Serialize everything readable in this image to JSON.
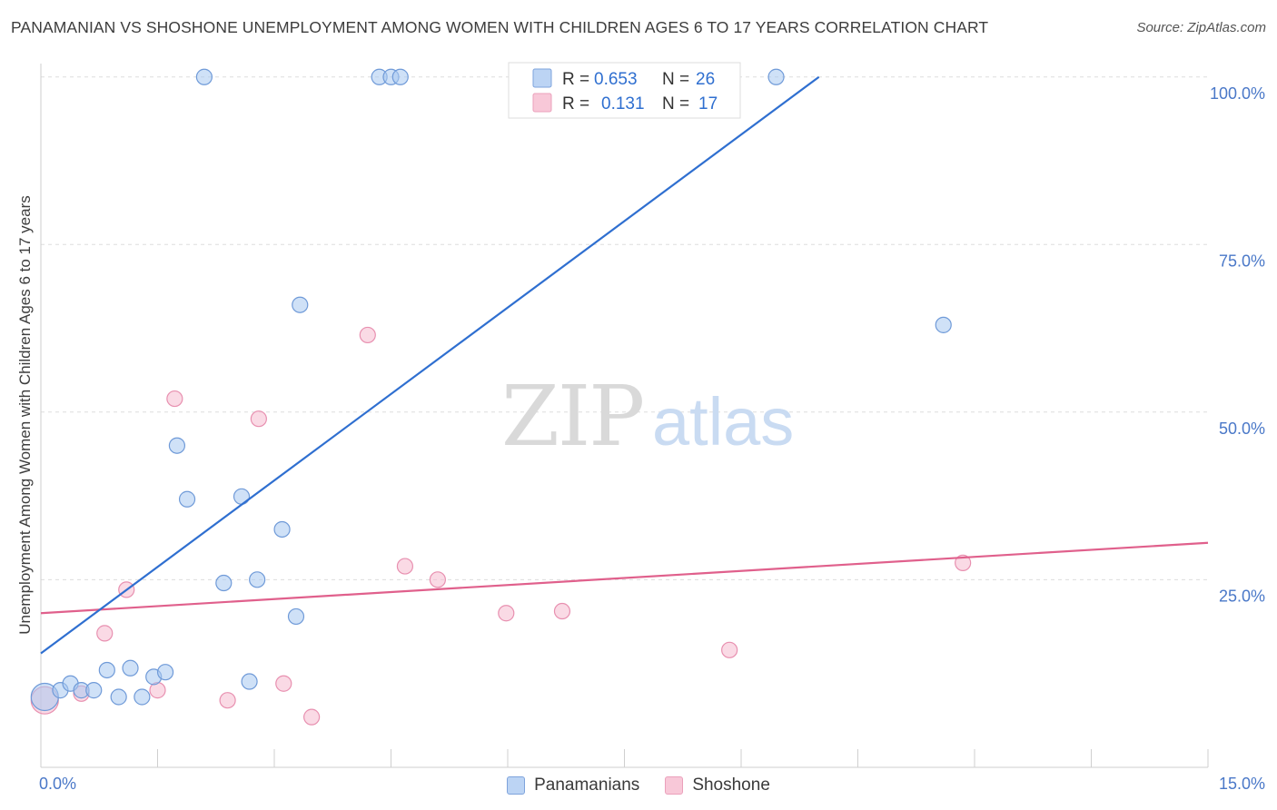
{
  "title": "PANAMANIAN VS SHOSHONE UNEMPLOYMENT AMONG WOMEN WITH CHILDREN AGES 6 TO 17 YEARS CORRELATION CHART",
  "source": "Source: ZipAtlas.com",
  "watermark": {
    "zip": "ZIP",
    "atlas": "atlas"
  },
  "colors": {
    "blue_fill": "#a8c8f0",
    "blue_stroke": "#6f9ad8",
    "blue_line": "#2f6fd0",
    "pink_fill": "#f5bcd0",
    "pink_stroke": "#e890b0",
    "pink_line": "#e0608c",
    "tick_text": "#4a78c8",
    "grid": "#dddddd"
  },
  "legend": {
    "rows": [
      {
        "r_label": "R =",
        "r_value": "0.653",
        "n_label": "N =",
        "n_value": "26"
      },
      {
        "r_label": "R =",
        "r_value": "0.131",
        "n_label": "N =",
        "n_value": "17"
      }
    ]
  },
  "bottom_legend": {
    "series1": "Panamanians",
    "series2": "Shoshone"
  },
  "chart_data": {
    "type": "scatter",
    "xlabel": "",
    "ylabel": "Unemployment Among Women with Children Ages 6 to 17 years",
    "xlim": [
      0,
      15
    ],
    "ylim": [
      -3,
      102
    ],
    "x_tick_labels": [
      {
        "value": 0,
        "label": "0.0%"
      },
      {
        "value": 15,
        "label": "15.0%"
      }
    ],
    "y_tick_labels": [
      {
        "value": 25,
        "label": "25.0%"
      },
      {
        "value": 50,
        "label": "50.0%"
      },
      {
        "value": 75,
        "label": "75.0%"
      },
      {
        "value": 100,
        "label": "100.0%"
      }
    ],
    "series": [
      {
        "name": "Panamanians",
        "points": [
          {
            "x": 0.05,
            "y": 7.5,
            "size": "large"
          },
          {
            "x": 0.25,
            "y": 8.5
          },
          {
            "x": 0.38,
            "y": 9.5
          },
          {
            "x": 0.52,
            "y": 8.5
          },
          {
            "x": 0.68,
            "y": 8.5
          },
          {
            "x": 0.85,
            "y": 11.5
          },
          {
            "x": 1.0,
            "y": 7.5
          },
          {
            "x": 1.15,
            "y": 11.8
          },
          {
            "x": 1.3,
            "y": 7.5
          },
          {
            "x": 1.45,
            "y": 10.5
          },
          {
            "x": 1.6,
            "y": 11.2
          },
          {
            "x": 1.75,
            "y": 45
          },
          {
            "x": 1.88,
            "y": 37
          },
          {
            "x": 2.1,
            "y": 100
          },
          {
            "x": 2.35,
            "y": 24.5
          },
          {
            "x": 2.58,
            "y": 37.4
          },
          {
            "x": 2.78,
            "y": 25
          },
          {
            "x": 2.68,
            "y": 9.8
          },
          {
            "x": 3.1,
            "y": 32.5
          },
          {
            "x": 3.28,
            "y": 19.5
          },
          {
            "x": 3.33,
            "y": 66
          },
          {
            "x": 4.35,
            "y": 100
          },
          {
            "x": 4.5,
            "y": 100
          },
          {
            "x": 4.62,
            "y": 100
          },
          {
            "x": 9.45,
            "y": 100
          },
          {
            "x": 11.6,
            "y": 63
          }
        ],
        "trend": {
          "x1": 0,
          "y1": 14,
          "x2": 10,
          "y2": 100
        }
      },
      {
        "name": "Shoshone",
        "points": [
          {
            "x": 0.05,
            "y": 7,
            "size": "large"
          },
          {
            "x": 0.52,
            "y": 8
          },
          {
            "x": 0.82,
            "y": 17
          },
          {
            "x": 1.1,
            "y": 23.5
          },
          {
            "x": 1.5,
            "y": 8.5
          },
          {
            "x": 1.72,
            "y": 52
          },
          {
            "x": 2.4,
            "y": 7
          },
          {
            "x": 2.8,
            "y": 49
          },
          {
            "x": 3.12,
            "y": 9.5
          },
          {
            "x": 3.48,
            "y": 4.5
          },
          {
            "x": 4.2,
            "y": 61.5
          },
          {
            "x": 4.68,
            "y": 27
          },
          {
            "x": 5.1,
            "y": 25
          },
          {
            "x": 5.98,
            "y": 20
          },
          {
            "x": 6.7,
            "y": 20.3
          },
          {
            "x": 8.85,
            "y": 14.5
          },
          {
            "x": 11.85,
            "y": 27.5
          }
        ],
        "trend": {
          "x1": 0,
          "y1": 20,
          "x2": 15,
          "y2": 30.5
        }
      }
    ]
  }
}
